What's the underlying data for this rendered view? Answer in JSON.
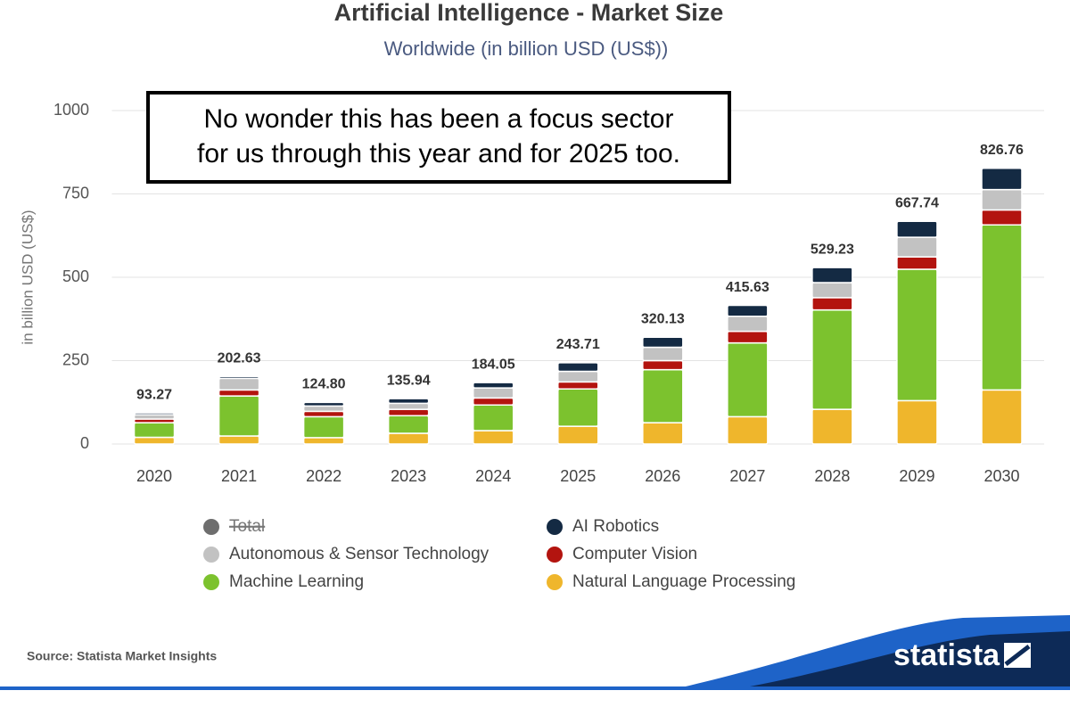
{
  "chart_data": {
    "type": "stacked-bar",
    "title": "Artificial Intelligence - Market Size",
    "subtitle": "Worldwide (in billion USD (US$))",
    "y_label": "in billion USD (US$)",
    "annotation": [
      "No wonder this has been a focus sector",
      "for us through this year and for 2025 too."
    ],
    "source": "Source: Statista Market Insights",
    "brand": "statista",
    "categories": [
      "2020",
      "2021",
      "2022",
      "2023",
      "2024",
      "2025",
      "2026",
      "2027",
      "2028",
      "2029",
      "2030"
    ],
    "ylim": [
      0,
      1000
    ],
    "yticks": [
      0,
      250,
      500,
      750,
      1000
    ],
    "grid": true,
    "series": [
      {
        "name": "Total",
        "color": "#6e6e6e",
        "hidden": true,
        "values": [
          93.27,
          202.63,
          124.8,
          135.94,
          184.05,
          243.71,
          320.13,
          415.63,
          529.23,
          667.74,
          826.76
        ],
        "value_labels": [
          "93.27",
          "202.63",
          "124.80",
          "135.94",
          "184.05",
          "243.71",
          "320.13",
          "415.63",
          "529.23",
          "667.74",
          "826.76"
        ]
      },
      {
        "name": "AI Robotics",
        "color": "#142a43",
        "values": [
          5.27,
          5.63,
          10.8,
          13.94,
          16.05,
          25.71,
          30.13,
          32.63,
          45.23,
          47.74,
          63.76
        ]
      },
      {
        "name": "Autonomous & Sensor Technology",
        "color": "#c2c2c2",
        "values": [
          13,
          35,
          16,
          18,
          30,
          32,
          40,
          45,
          45,
          59,
          61
        ]
      },
      {
        "name": "Computer Vision",
        "color": "#b3140f",
        "values": [
          11,
          18,
          16,
          19,
          21,
          21,
          27,
          35,
          37,
          37,
          45
        ]
      },
      {
        "name": "Machine Learning",
        "color": "#7cc22e",
        "values": [
          44,
          120,
          63,
          53,
          77,
          112,
          159,
          221,
          298,
          394,
          495
        ]
      },
      {
        "name": "Natural Language Processing",
        "color": "#efb62c",
        "values": [
          20,
          24,
          19,
          32,
          40,
          53,
          64,
          82,
          104,
          130,
          162
        ]
      }
    ]
  }
}
